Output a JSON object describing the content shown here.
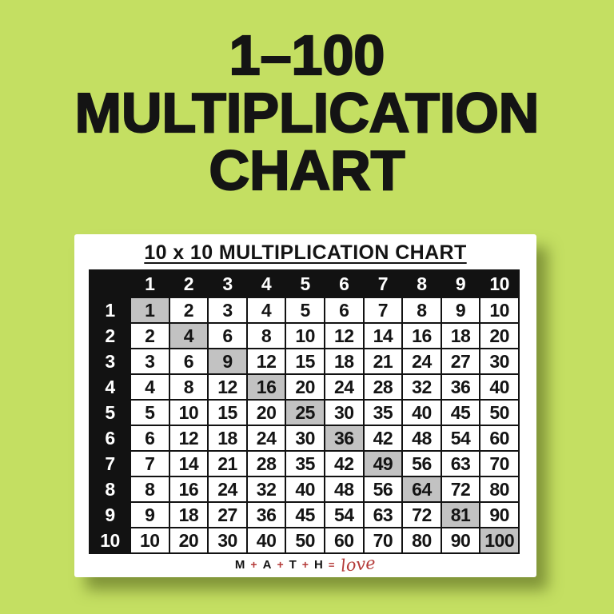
{
  "colors": {
    "background": "#c4df62",
    "card": "#ffffff",
    "table-black": "#121212",
    "diagonal-gray": "#c2c2c2",
    "logo-red": "#b43a38",
    "text-black": "#141414"
  },
  "title": {
    "line1": "1–100",
    "line2": "MULTIPLICATION",
    "line3": "CHART"
  },
  "card": {
    "title": "10 x 10 MULTIPLICATION CHART"
  },
  "table": {
    "column_headers": [
      "1",
      "2",
      "3",
      "4",
      "5",
      "6",
      "7",
      "8",
      "9",
      "10"
    ],
    "row_headers": [
      "1",
      "2",
      "3",
      "4",
      "5",
      "6",
      "7",
      "8",
      "9",
      "10"
    ],
    "rows": [
      [
        1,
        2,
        3,
        4,
        5,
        6,
        7,
        8,
        9,
        10
      ],
      [
        2,
        4,
        6,
        8,
        10,
        12,
        14,
        16,
        18,
        20
      ],
      [
        3,
        6,
        9,
        12,
        15,
        18,
        21,
        24,
        27,
        30
      ],
      [
        4,
        8,
        12,
        16,
        20,
        24,
        28,
        32,
        36,
        40
      ],
      [
        5,
        10,
        15,
        20,
        25,
        30,
        35,
        40,
        45,
        50
      ],
      [
        6,
        12,
        18,
        24,
        30,
        36,
        42,
        48,
        54,
        60
      ],
      [
        7,
        14,
        21,
        28,
        35,
        42,
        49,
        56,
        63,
        70
      ],
      [
        8,
        16,
        24,
        32,
        40,
        48,
        56,
        64,
        72,
        80
      ],
      [
        9,
        18,
        27,
        36,
        45,
        54,
        63,
        72,
        81,
        90
      ],
      [
        10,
        20,
        30,
        40,
        50,
        60,
        70,
        80,
        90,
        100
      ]
    ],
    "highlight_rule": "diagonal",
    "highlighted_values": [
      1,
      4,
      9,
      16,
      25,
      36,
      49,
      64,
      81,
      100
    ]
  },
  "logo": {
    "letters": [
      "M",
      "A",
      "T",
      "H"
    ],
    "plus": "+",
    "equals": "=",
    "word": "love"
  }
}
